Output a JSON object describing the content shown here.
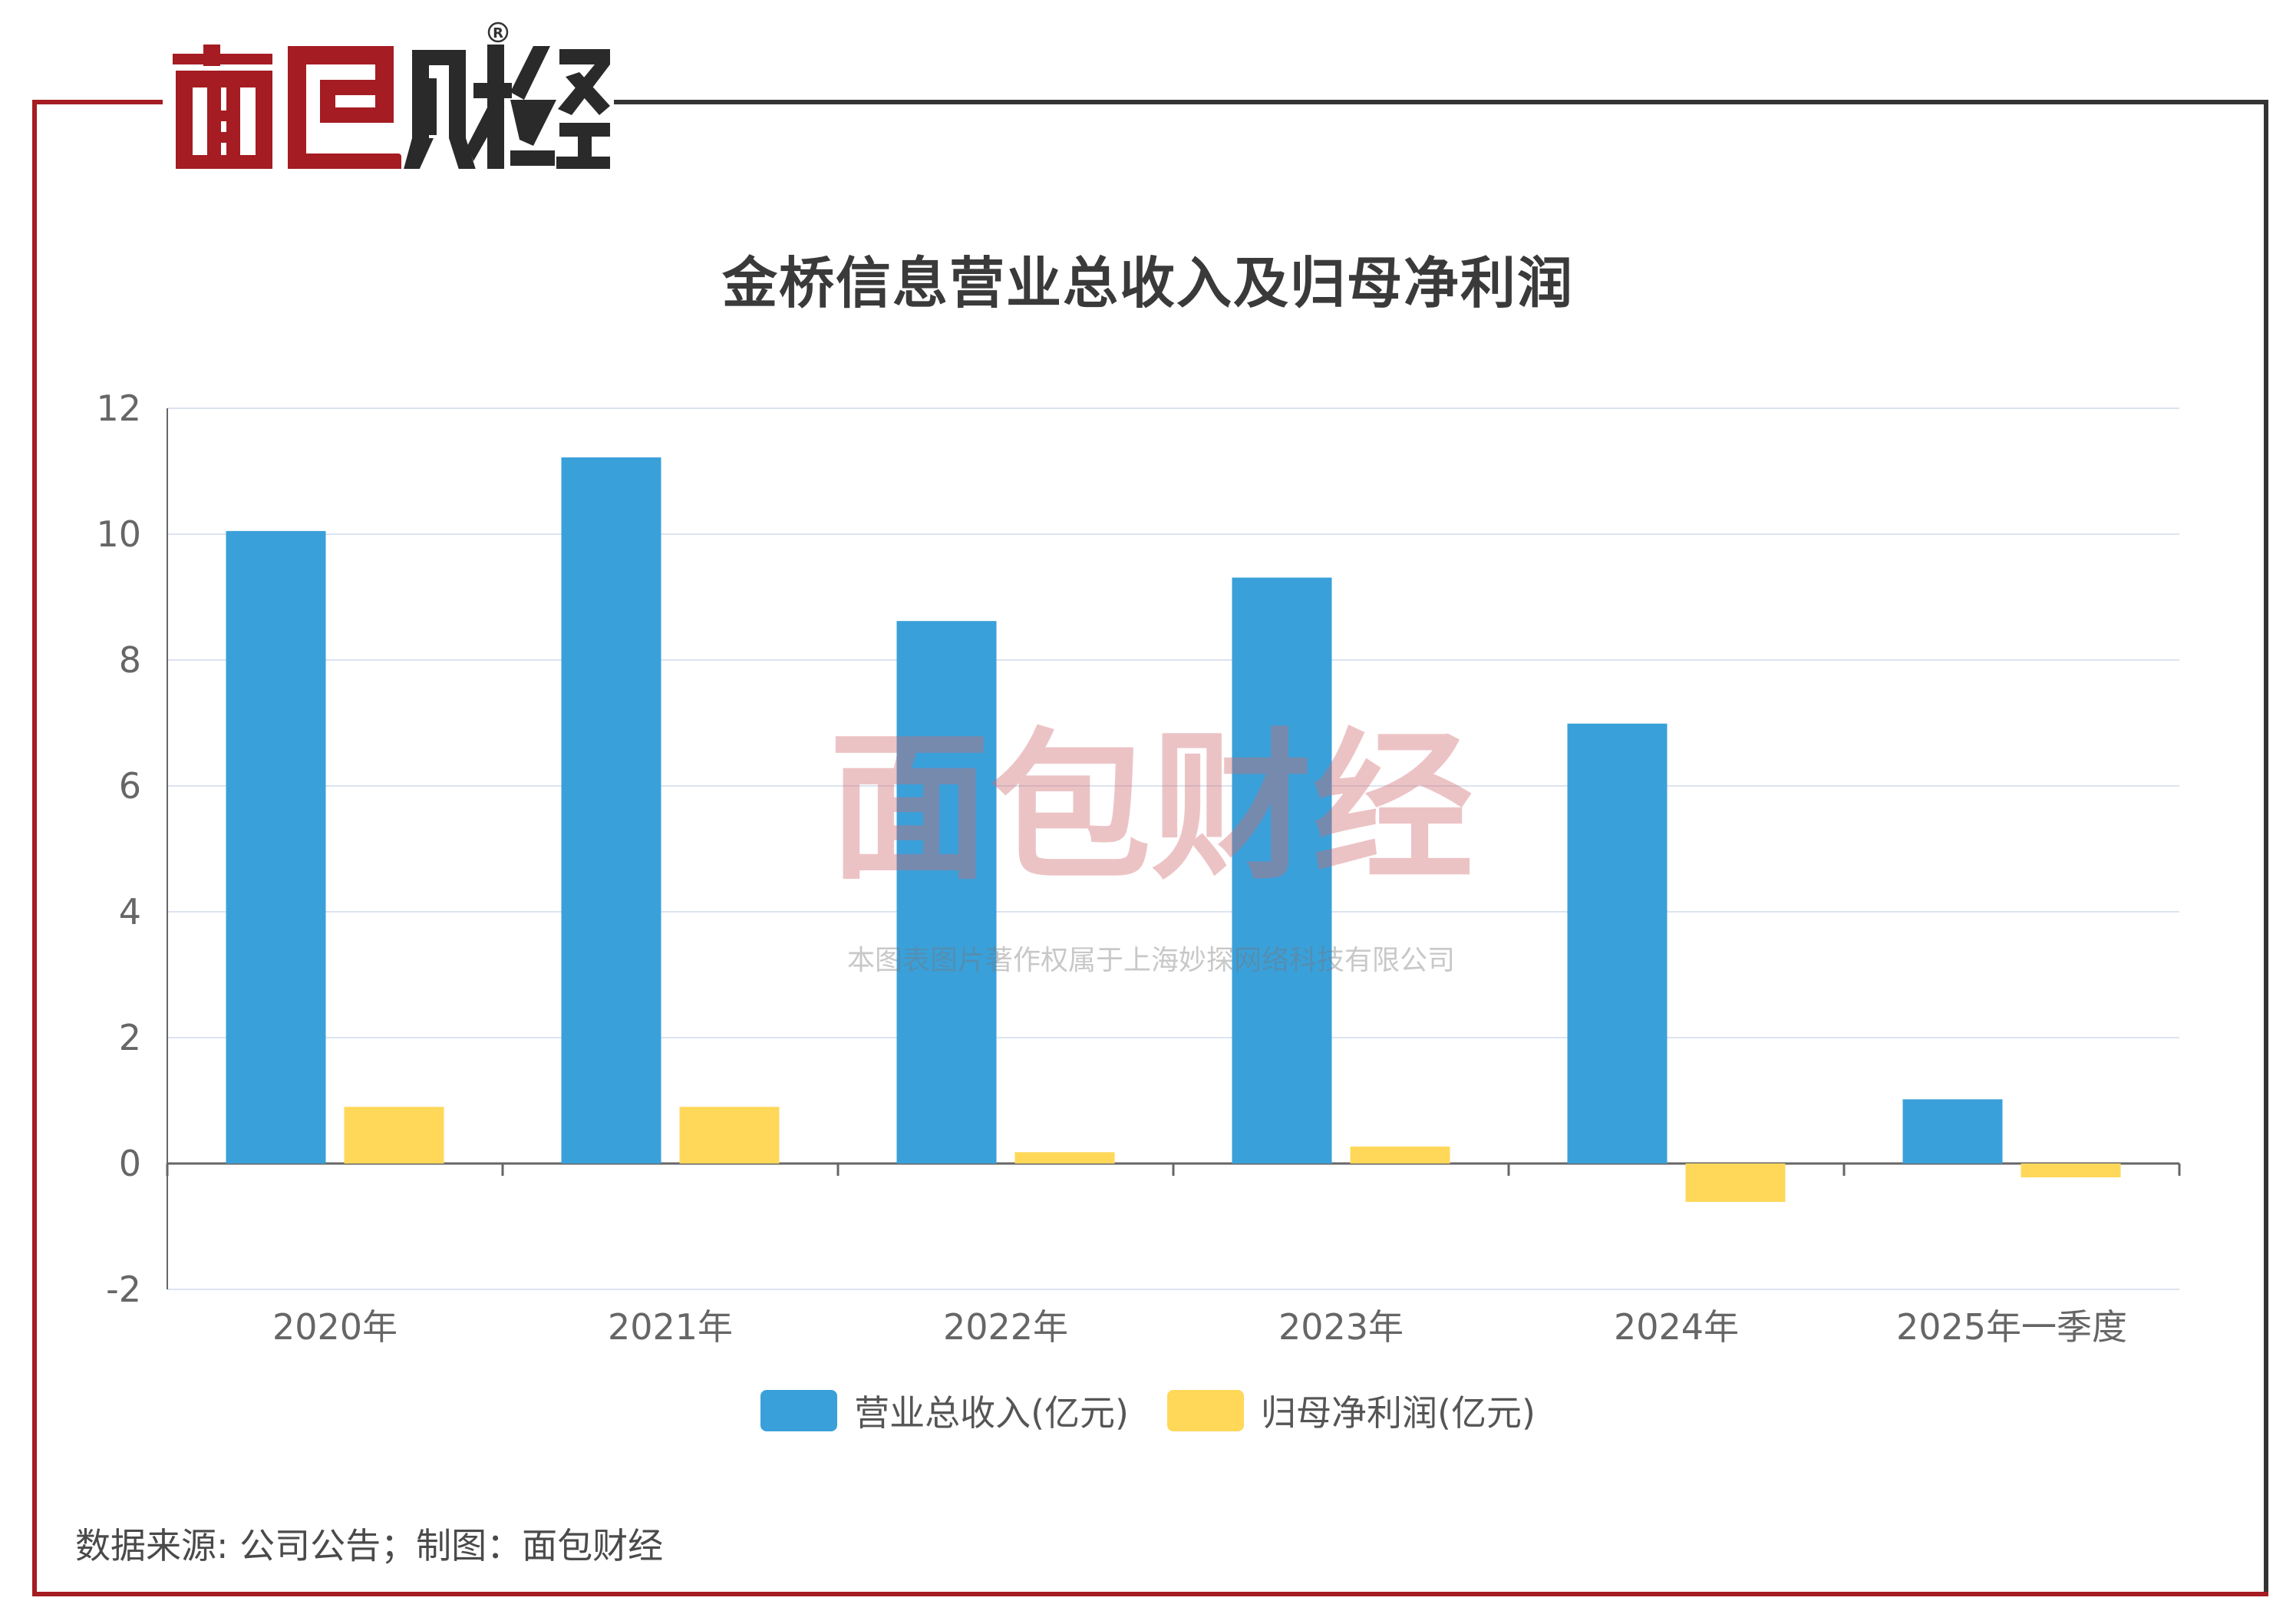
{
  "brand": {
    "logo_text": "面包财经",
    "registered_mark": "®",
    "red": "#a51c22",
    "dark": "#333333"
  },
  "chart_data": {
    "type": "bar",
    "title": "金桥信息营业总收入及归母净利润",
    "categories": [
      "2020年",
      "2021年",
      "2022年",
      "2023年",
      "2024年",
      "2025年一季度"
    ],
    "series": [
      {
        "name": "营业总收入(亿元)",
        "color": "#3aa0da",
        "values": [
          10.05,
          11.22,
          8.62,
          9.31,
          6.99,
          1.02
        ]
      },
      {
        "name": "归母净利润(亿元)",
        "color": "#ffd85a",
        "values": [
          0.9,
          0.9,
          0.18,
          0.27,
          -0.61,
          -0.22
        ]
      }
    ],
    "ylim": [
      -2,
      12
    ],
    "yticks": [
      -2,
      0,
      2,
      4,
      6,
      8,
      10,
      12
    ],
    "grid": true,
    "legend_position": "bottom"
  },
  "watermark": {
    "logo_text": "面包财经",
    "caption": "本图表图片著作权属于上海妙探网络科技有限公司"
  },
  "footer": {
    "source_note": "数据来源: 公司公告；制图：面包财经"
  }
}
